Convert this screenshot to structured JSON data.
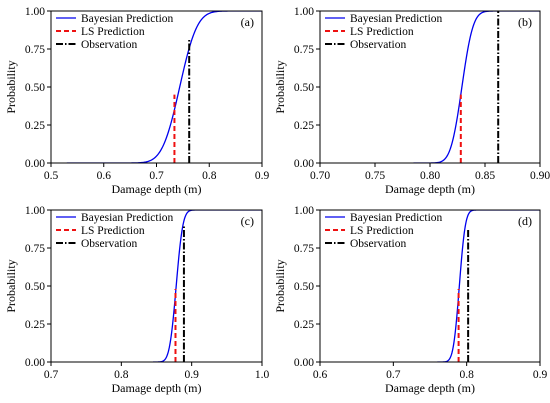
{
  "figure": {
    "background": "#ffffff"
  },
  "legend_labels": {
    "bayes": "Bayesian Prediction",
    "ls": "LS Prediction",
    "obs": "Observation"
  },
  "colors": {
    "bayes": "#0000ee",
    "ls": "#ee1111",
    "obs": "#000000"
  },
  "chart_data": [
    {
      "type": "line",
      "tag": "(a)",
      "xlabel": "Damage depth (m)",
      "ylabel": "Probability",
      "xlim": [
        0.5,
        0.9
      ],
      "ylim": [
        0,
        1
      ],
      "xticks": [
        "0.5",
        "0.6",
        "0.7",
        "0.8",
        "0.9"
      ],
      "yticks": [
        "0.00",
        "0.25",
        "0.50",
        "0.75",
        "1.00"
      ],
      "legend_position": "upper-left",
      "series": [
        {
          "name": "Bayesian Prediction",
          "kind": "cdf",
          "mean": 0.744,
          "std": 0.026,
          "x_start": 0.53,
          "x_end": 0.9
        },
        {
          "name": "LS Prediction",
          "kind": "vertical",
          "x": 0.734,
          "y_top": 0.45
        },
        {
          "name": "Observation",
          "kind": "vertical",
          "x": 0.762,
          "y_top": 0.82
        }
      ]
    },
    {
      "type": "line",
      "tag": "(b)",
      "xlabel": "Damage depth (m)",
      "ylabel": "Probability",
      "xlim": [
        0.7,
        0.9
      ],
      "ylim": [
        0,
        1
      ],
      "xticks": [
        "0.70",
        "0.75",
        "0.80",
        "0.85",
        "0.90"
      ],
      "yticks": [
        "0.00",
        "0.25",
        "0.50",
        "0.75",
        "1.00"
      ],
      "legend_position": "upper-left",
      "series": [
        {
          "name": "Bayesian Prediction",
          "kind": "cdf",
          "mean": 0.829,
          "std": 0.008,
          "x_start": 0.785,
          "x_end": 0.9
        },
        {
          "name": "LS Prediction",
          "kind": "vertical",
          "x": 0.828,
          "y_top": 0.45
        },
        {
          "name": "Observation",
          "kind": "vertical",
          "x": 0.862,
          "y_top": 1.0
        }
      ]
    },
    {
      "type": "line",
      "tag": "(c)",
      "xlabel": "Damage depth (m)",
      "ylabel": "Probability",
      "xlim": [
        0.7,
        1.0
      ],
      "ylim": [
        0,
        1
      ],
      "xticks": [
        "0.7",
        "0.8",
        "0.9",
        "1.0"
      ],
      "yticks": [
        "0.00",
        "0.25",
        "0.50",
        "0.75",
        "1.00"
      ],
      "legend_position": "upper-left",
      "series": [
        {
          "name": "Bayesian Prediction",
          "kind": "cdf",
          "mean": 0.878,
          "std": 0.0075,
          "x_start": 0.845,
          "x_end": 1.0
        },
        {
          "name": "LS Prediction",
          "kind": "vertical",
          "x": 0.877,
          "y_top": 0.48
        },
        {
          "name": "Observation",
          "kind": "vertical",
          "x": 0.889,
          "y_top": 0.9
        }
      ]
    },
    {
      "type": "line",
      "tag": "(d)",
      "xlabel": "Damage depth (m)",
      "ylabel": "Probability",
      "xlim": [
        0.6,
        0.9
      ],
      "ylim": [
        0,
        1
      ],
      "xticks": [
        "0.6",
        "0.7",
        "0.8",
        "0.9"
      ],
      "yticks": [
        "0.00",
        "0.25",
        "0.50",
        "0.75",
        "1.00"
      ],
      "legend_position": "upper-left",
      "series": [
        {
          "name": "Bayesian Prediction",
          "kind": "cdf",
          "mean": 0.79,
          "std": 0.0065,
          "x_start": 0.76,
          "x_end": 0.9
        },
        {
          "name": "LS Prediction",
          "kind": "vertical",
          "x": 0.789,
          "y_top": 0.48
        },
        {
          "name": "Observation",
          "kind": "vertical",
          "x": 0.802,
          "y_top": 0.88
        }
      ]
    }
  ]
}
